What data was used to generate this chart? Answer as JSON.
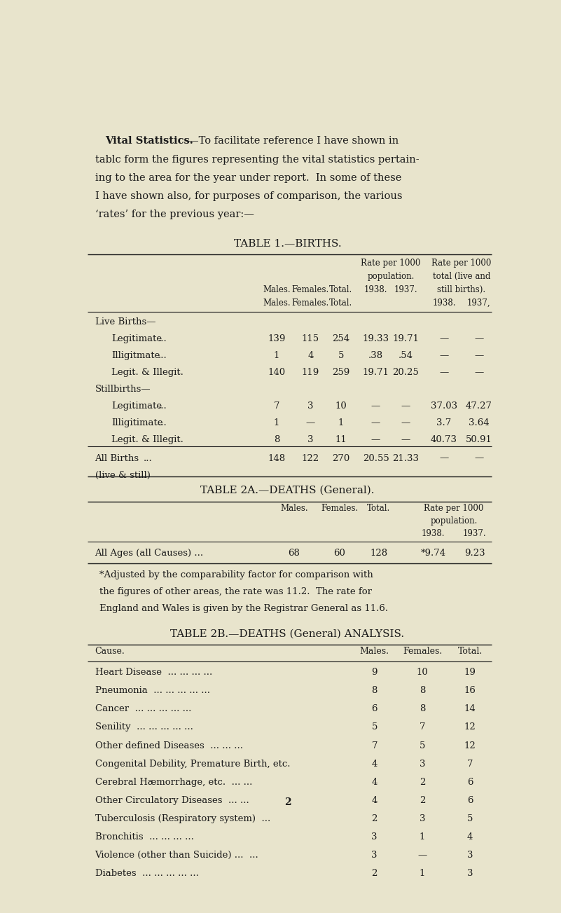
{
  "bg_color": "#e8e4cc",
  "text_color": "#1a1a1a",
  "paragraph_line1_bold": "Vital Statistics.",
  "paragraph_line1_rest": "—To facilitate reference I have shown in",
  "paragraph_lines": [
    "tablc form the figures representing the vital statistics pertain-",
    "ing to the area for the year under report.  In some of these",
    "I have shown also, for purposes of comparison, the various",
    "‘rates’ for the previous year:—"
  ],
  "table1_title": "TABLE 1.—BIRTHS.",
  "table1_rows": [
    {
      "label": "Live Births—",
      "indent": 0,
      "dots": false,
      "males": "",
      "females": "",
      "total": "",
      "rp38": "",
      "rp37": "",
      "rs38": "",
      "rs37": ""
    },
    {
      "label": "Legitimate",
      "indent": 1,
      "dots": true,
      "males": "139",
      "females": "115",
      "total": "254",
      "rp38": "19.33",
      "rp37": "19.71",
      "rs38": "—",
      "rs37": "—"
    },
    {
      "label": "Illigitmate",
      "indent": 1,
      "dots": true,
      "males": "1",
      "females": "4",
      "total": "5",
      "rp38": ".38",
      "rp37": ".54",
      "rs38": "—",
      "rs37": "—"
    },
    {
      "label": "Legit. & Illegit.",
      "indent": 1,
      "dots": false,
      "males": "140",
      "females": "119",
      "total": "259",
      "rp38": "19.71",
      "rp37": "20.25",
      "rs38": "—",
      "rs37": "—"
    },
    {
      "label": "Stillbirths—",
      "indent": 0,
      "dots": false,
      "males": "",
      "females": "",
      "total": "",
      "rp38": "",
      "rp37": "",
      "rs38": "",
      "rs37": ""
    },
    {
      "label": "Legitimate",
      "indent": 1,
      "dots": true,
      "males": "7",
      "females": "3",
      "total": "10",
      "rp38": "—",
      "rp37": "—",
      "rs38": "37.03",
      "rs37": "47.27"
    },
    {
      "label": "Illigitimate",
      "indent": 1,
      "dots": true,
      "males": "1",
      "females": "—",
      "total": "1",
      "rp38": "—",
      "rp37": "—",
      "rs38": "3.7",
      "rs37": "3.64"
    },
    {
      "label": "Legit. & Illegit.",
      "indent": 1,
      "dots": false,
      "males": "8",
      "females": "3",
      "total": "11",
      "rp38": "—",
      "rp37": "—",
      "rs38": "40.73",
      "rs37": "50.91"
    }
  ],
  "table1_footer": {
    "label": "All Births",
    "label2": "(live & still)",
    "males": "148",
    "females": "122",
    "total": "270",
    "rp38": "20.55",
    "rp37": "21.33",
    "rs38": "—",
    "rs37": "—"
  },
  "table2a_title": "TABLE 2A.—DEATHS (General).",
  "table2a_row": {
    "label": "All Ages (all Causes) ...",
    "males": "68",
    "females": "60",
    "total": "128",
    "r38": "*9.74",
    "r37": "9.23"
  },
  "table2a_footnote_lines": [
    "*Adjusted by the comparability factor for comparison with",
    "the figures of other areas, the rate was 11.2.  The rate for",
    "England and Wales is given by the Registrar General as 11.6."
  ],
  "table2b_title": "TABLE 2B.—DEATHS (General) ANALYSIS.",
  "table2b_rows": [
    {
      "cause": "Heart Disease",
      "dots": "... ... ... ...",
      "males": "9",
      "females": "10",
      "total": "19"
    },
    {
      "cause": "Pneumonia",
      "dots": "... ... ... ... ...",
      "males": "8",
      "females": "8",
      "total": "16"
    },
    {
      "cause": "Cancer",
      "dots": "... ... ... ... ...",
      "males": "6",
      "females": "8",
      "total": "14"
    },
    {
      "cause": "Senility",
      "dots": "... ... ... ... ...",
      "males": "5",
      "females": "7",
      "total": "12"
    },
    {
      "cause": "Other defined Diseases",
      "dots": "... ... ...",
      "males": "7",
      "females": "5",
      "total": "12"
    },
    {
      "cause": "Congenital Debility, Premature Birth, etc.",
      "dots": "",
      "males": "4",
      "females": "3",
      "total": "7"
    },
    {
      "cause": "Cerebral Hæmorrhage, etc.",
      "dots": "... ...",
      "males": "4",
      "females": "2",
      "total": "6"
    },
    {
      "cause": "Other Circulatory Diseases",
      "dots": "... ...",
      "males": "4",
      "females": "2",
      "total": "6"
    },
    {
      "cause": "Tuberculosis (Respiratory system)",
      "dots": "...",
      "males": "2",
      "females": "3",
      "total": "5"
    },
    {
      "cause": "Bronchitis",
      "dots": "... ... ... ...",
      "males": "3",
      "females": "1",
      "total": "4"
    },
    {
      "cause": "Violence (other than Suicide) ...",
      "dots": "...",
      "males": "3",
      "females": "—",
      "total": "3"
    },
    {
      "cause": "Diabetes",
      "dots": "... ... ... ... ...",
      "males": "2",
      "females": "1",
      "total": "3"
    }
  ],
  "page_number": "2"
}
